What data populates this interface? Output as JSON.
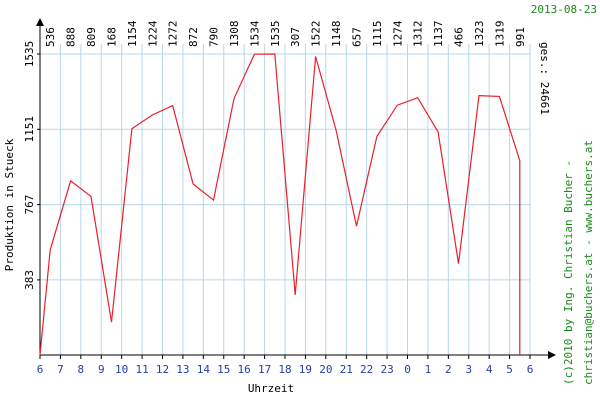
{
  "date_label": "2013-08-23",
  "total_label": "ges.: 24661",
  "credit_line1": "(c)2010 by Ing. Christian Bucher -",
  "credit_line2": "christian@buchers.at  -  www.buchers.at",
  "colors": {
    "line": "#e8202a",
    "grid": "#b8d8e8",
    "axis": "#000000",
    "xtick_text": "#1f3fb0",
    "credit": "#1a8a1a"
  },
  "chart_data": {
    "type": "line",
    "title": "",
    "xlabel": "Uhrzeit",
    "ylabel": "Produktion in Stueck",
    "ylim": [
      0,
      1535
    ],
    "yticks": [
      383,
      767,
      1151,
      1535
    ],
    "grid": true,
    "x_tick_labels": [
      "6",
      "7",
      "8",
      "9",
      "10",
      "11",
      "12",
      "13",
      "14",
      "15",
      "16",
      "17",
      "18",
      "19",
      "20",
      "21",
      "22",
      "23",
      "0",
      "1",
      "2",
      "3",
      "4",
      "5",
      "6"
    ],
    "top_value_labels": [
      "536",
      "888",
      "809",
      "168",
      "1154",
      "1224",
      "1272",
      "872",
      "790",
      "1308",
      "1534",
      "1535",
      "307",
      "1522",
      "1148",
      "657",
      "1115",
      "1274",
      "1312",
      "1137",
      "466",
      "1323",
      "1319",
      "991"
    ],
    "series": [
      {
        "x": [
          "6",
          "6.5",
          "7.5",
          "8.5",
          "9.5",
          "10.5",
          "11.5",
          "12.5",
          "13.5",
          "14.5",
          "15.5",
          "16.5",
          "17.5",
          "18.5",
          "19.5",
          "20.5",
          "21.5",
          "22.5",
          "23.5",
          "0.5",
          "1.5",
          "2.5",
          "3.5",
          "4.5",
          "5.5",
          "5.5"
        ],
        "values": [
          0,
          536,
          888,
          809,
          168,
          1154,
          1224,
          1272,
          872,
          790,
          1308,
          1534,
          1535,
          307,
          1522,
          1148,
          657,
          1115,
          1274,
          1312,
          1137,
          466,
          1323,
          1319,
          991,
          0
        ]
      }
    ]
  }
}
